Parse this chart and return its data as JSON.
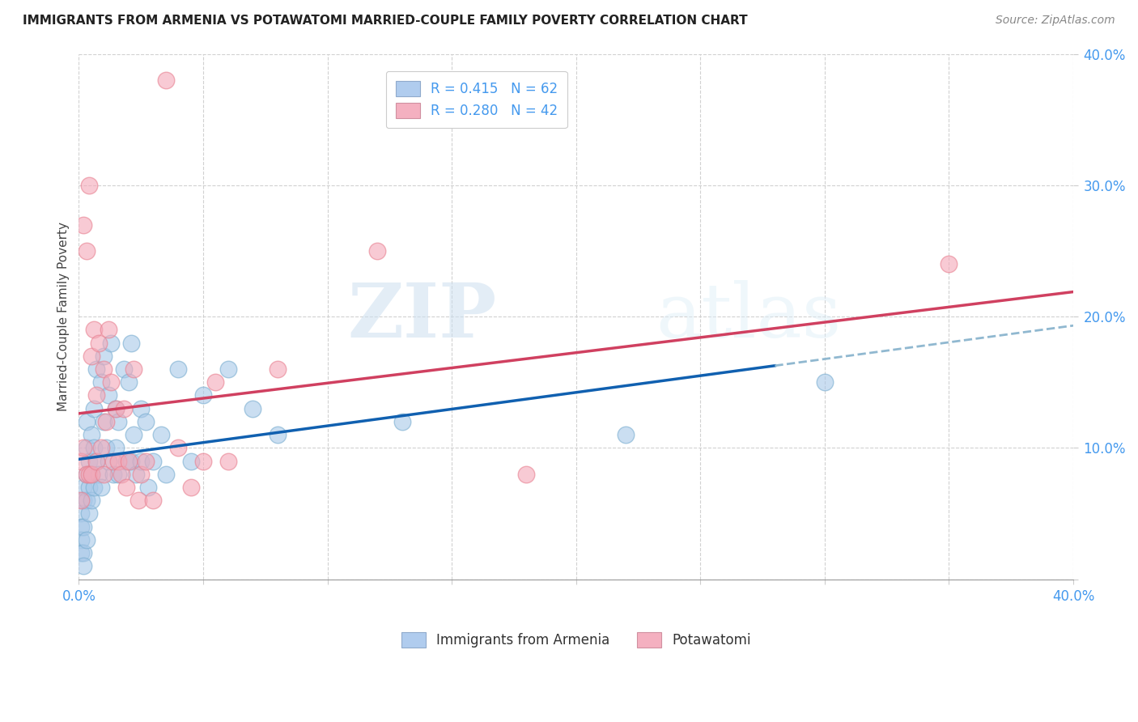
{
  "title": "IMMIGRANTS FROM ARMENIA VS POTAWATOMI MARRIED-COUPLE FAMILY POVERTY CORRELATION CHART",
  "source": "Source: ZipAtlas.com",
  "ylabel": "Married-Couple Family Poverty",
  "xlim": [
    0.0,
    0.4
  ],
  "ylim": [
    0.0,
    0.4
  ],
  "ytick_positions": [
    0.0,
    0.1,
    0.2,
    0.3,
    0.4
  ],
  "xtick_positions": [
    0.0,
    0.05,
    0.1,
    0.15,
    0.2,
    0.25,
    0.3,
    0.35,
    0.4
  ],
  "watermark_zip": "ZIP",
  "watermark_atlas": "atlas",
  "blue_color": "#a8c8e8",
  "pink_color": "#f4a8b8",
  "blue_edge_color": "#7aaed0",
  "pink_edge_color": "#e88090",
  "blue_line_color": "#1060b0",
  "pink_line_color": "#d04060",
  "dashed_line_color": "#90b8d0",
  "tick_label_color": "#4499ee",
  "legend_entries": [
    {
      "label": "R = 0.415   N = 62",
      "facecolor": "#b0ccee",
      "edgecolor": "#90aacc"
    },
    {
      "label": "R = 0.280   N = 42",
      "facecolor": "#f4b0c0",
      "edgecolor": "#d090a0"
    }
  ],
  "legend_bottom": [
    {
      "label": "Immigrants from Armenia",
      "facecolor": "#b0ccee",
      "edgecolor": "#90aacc"
    },
    {
      "label": "Potawatomi",
      "facecolor": "#f4b0c0",
      "edgecolor": "#d090a0"
    }
  ],
  "blue_scatter_x": [
    0.001,
    0.001,
    0.001,
    0.001,
    0.002,
    0.002,
    0.002,
    0.002,
    0.002,
    0.003,
    0.003,
    0.003,
    0.003,
    0.003,
    0.004,
    0.004,
    0.004,
    0.005,
    0.005,
    0.005,
    0.006,
    0.006,
    0.006,
    0.007,
    0.007,
    0.008,
    0.009,
    0.009,
    0.01,
    0.01,
    0.011,
    0.012,
    0.012,
    0.013,
    0.014,
    0.015,
    0.015,
    0.016,
    0.016,
    0.018,
    0.019,
    0.02,
    0.021,
    0.021,
    0.022,
    0.023,
    0.025,
    0.025,
    0.027,
    0.028,
    0.03,
    0.033,
    0.035,
    0.04,
    0.045,
    0.05,
    0.06,
    0.07,
    0.08,
    0.13,
    0.22,
    0.3
  ],
  "blue_scatter_y": [
    0.05,
    0.04,
    0.03,
    0.02,
    0.07,
    0.06,
    0.04,
    0.02,
    0.01,
    0.12,
    0.1,
    0.08,
    0.06,
    0.03,
    0.09,
    0.07,
    0.05,
    0.11,
    0.08,
    0.06,
    0.13,
    0.1,
    0.07,
    0.16,
    0.09,
    0.08,
    0.15,
    0.07,
    0.17,
    0.12,
    0.1,
    0.14,
    0.09,
    0.18,
    0.08,
    0.1,
    0.13,
    0.12,
    0.08,
    0.16,
    0.09,
    0.15,
    0.18,
    0.09,
    0.11,
    0.08,
    0.13,
    0.09,
    0.12,
    0.07,
    0.09,
    0.11,
    0.08,
    0.16,
    0.09,
    0.14,
    0.16,
    0.13,
    0.11,
    0.12,
    0.11,
    0.15
  ],
  "pink_scatter_x": [
    0.001,
    0.001,
    0.002,
    0.002,
    0.003,
    0.003,
    0.004,
    0.004,
    0.005,
    0.005,
    0.006,
    0.007,
    0.007,
    0.008,
    0.009,
    0.01,
    0.01,
    0.011,
    0.012,
    0.013,
    0.014,
    0.015,
    0.016,
    0.017,
    0.018,
    0.019,
    0.02,
    0.022,
    0.024,
    0.025,
    0.027,
    0.03,
    0.035,
    0.04,
    0.045,
    0.05,
    0.055,
    0.06,
    0.08,
    0.12,
    0.18,
    0.35
  ],
  "pink_scatter_y": [
    0.09,
    0.06,
    0.27,
    0.1,
    0.25,
    0.08,
    0.3,
    0.08,
    0.17,
    0.08,
    0.19,
    0.14,
    0.09,
    0.18,
    0.1,
    0.16,
    0.08,
    0.12,
    0.19,
    0.15,
    0.09,
    0.13,
    0.09,
    0.08,
    0.13,
    0.07,
    0.09,
    0.16,
    0.06,
    0.08,
    0.09,
    0.06,
    0.38,
    0.1,
    0.07,
    0.09,
    0.15,
    0.09,
    0.16,
    0.25,
    0.08,
    0.24
  ],
  "blue_line_intercept": 0.062,
  "blue_line_slope": 0.27,
  "pink_line_intercept": 0.088,
  "pink_line_slope": 0.33
}
